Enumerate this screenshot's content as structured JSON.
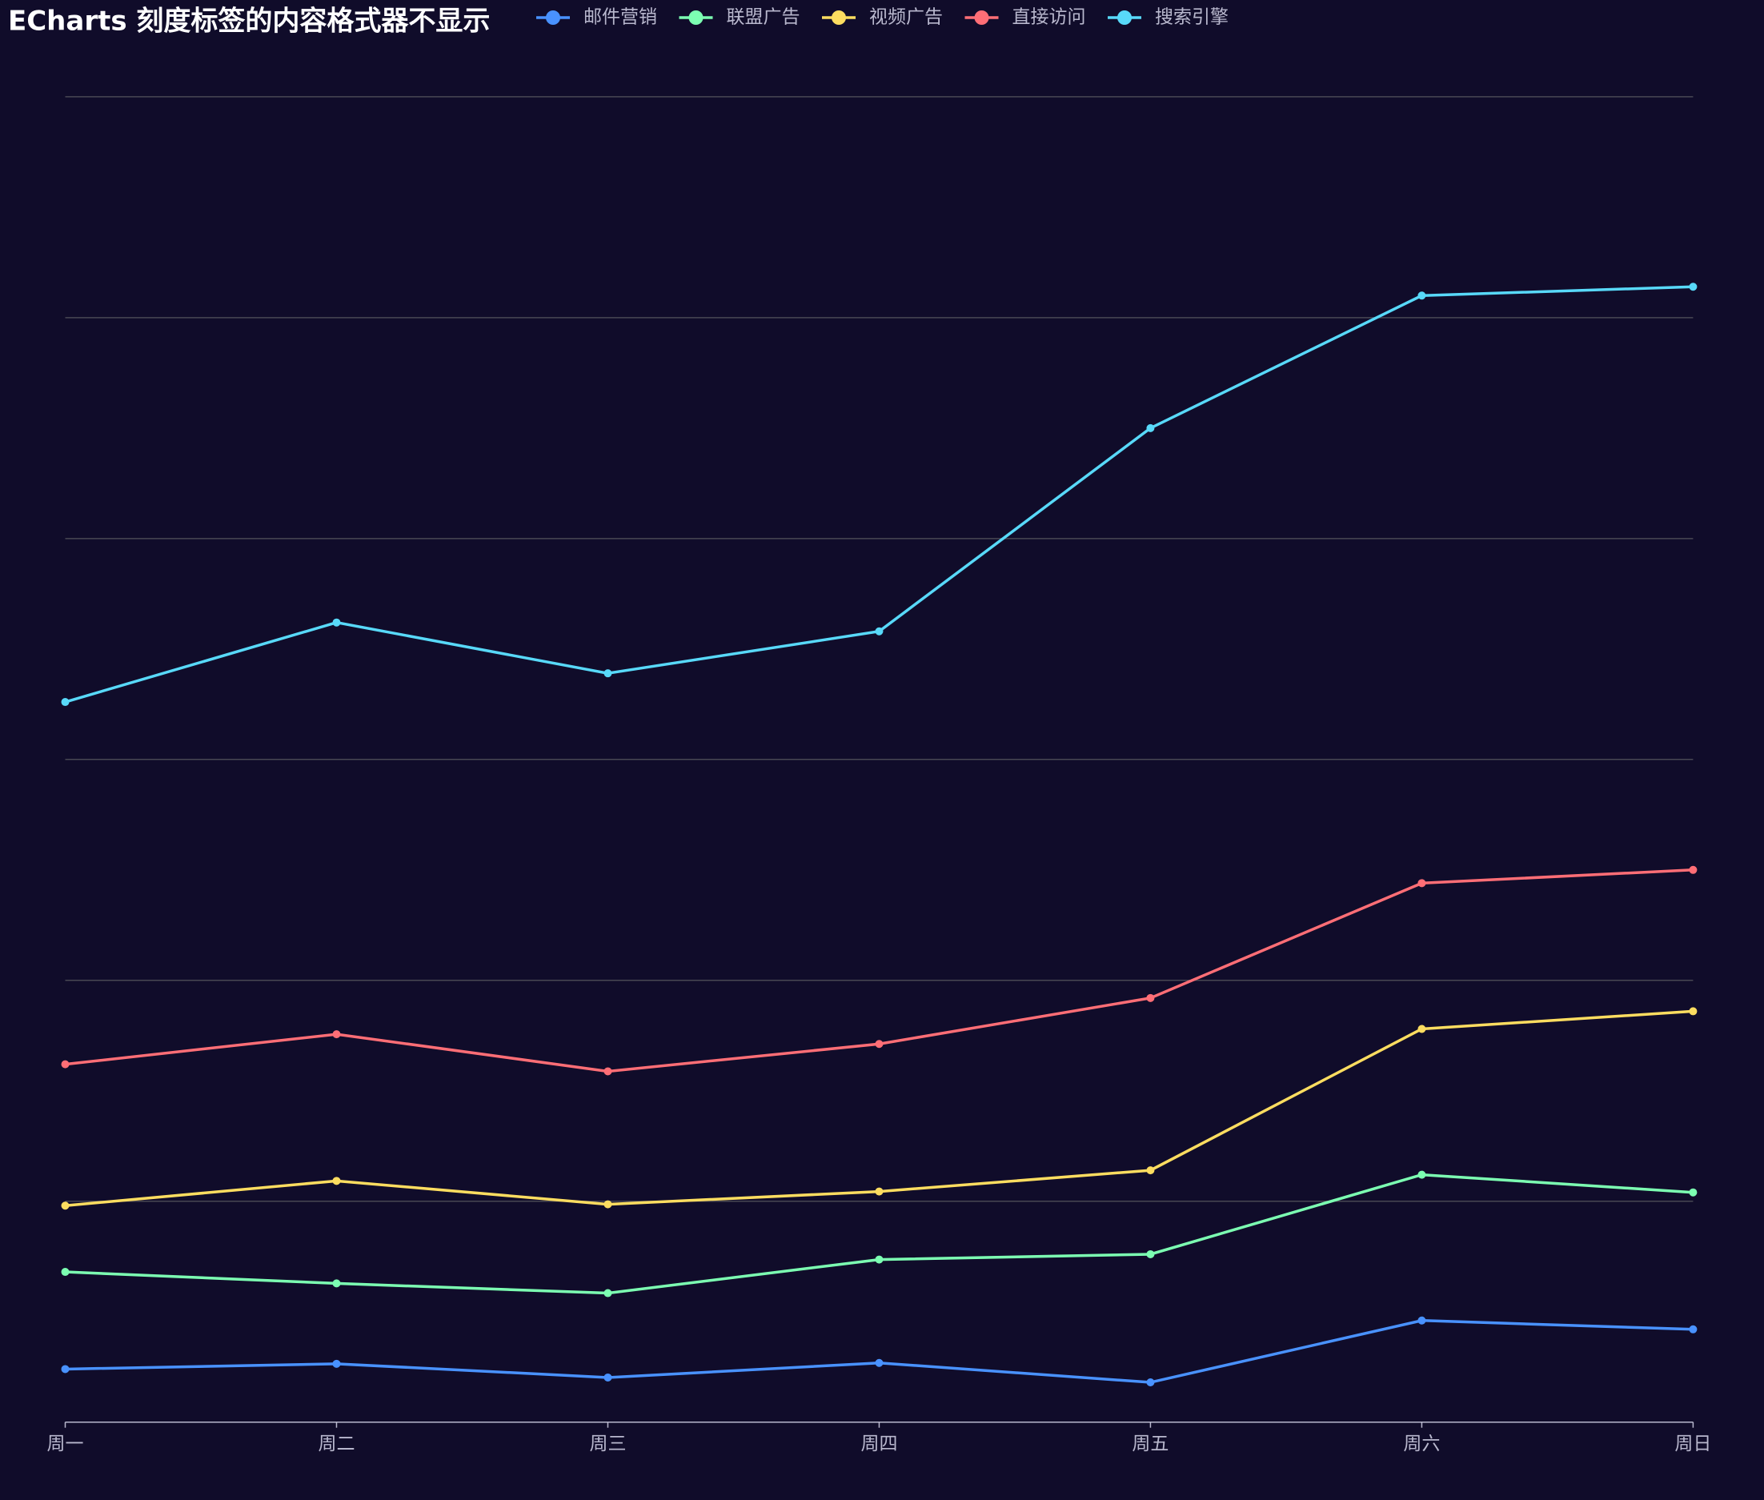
{
  "chart_data": {
    "type": "line",
    "stack": true,
    "title": "ECharts 刻度标签的内容格式器不显示",
    "categories": [
      "周一",
      "周二",
      "周三",
      "周四",
      "周五",
      "周六",
      "周日"
    ],
    "series": [
      {
        "name": "邮件营销",
        "color": "#4992ff",
        "values": [
          120,
          132,
          101,
          134,
          90,
          230,
          210
        ]
      },
      {
        "name": "联盟广告",
        "color": "#7cffb2",
        "values": [
          220,
          182,
          191,
          234,
          290,
          330,
          310
        ]
      },
      {
        "name": "视频广告",
        "color": "#fddd60",
        "values": [
          150,
          232,
          201,
          154,
          190,
          330,
          410
        ]
      },
      {
        "name": "直接访问",
        "color": "#ff6e76",
        "values": [
          320,
          332,
          301,
          334,
          390,
          330,
          320
        ]
      },
      {
        "name": "搜索引擎",
        "color": "#58d9f9",
        "values": [
          820,
          932,
          901,
          934,
          1290,
          1330,
          1320
        ]
      }
    ],
    "ylim": [
      0,
      3000
    ],
    "yticks": [
      0,
      500,
      1000,
      1500,
      2000,
      2500,
      3000
    ],
    "grid": true
  }
}
